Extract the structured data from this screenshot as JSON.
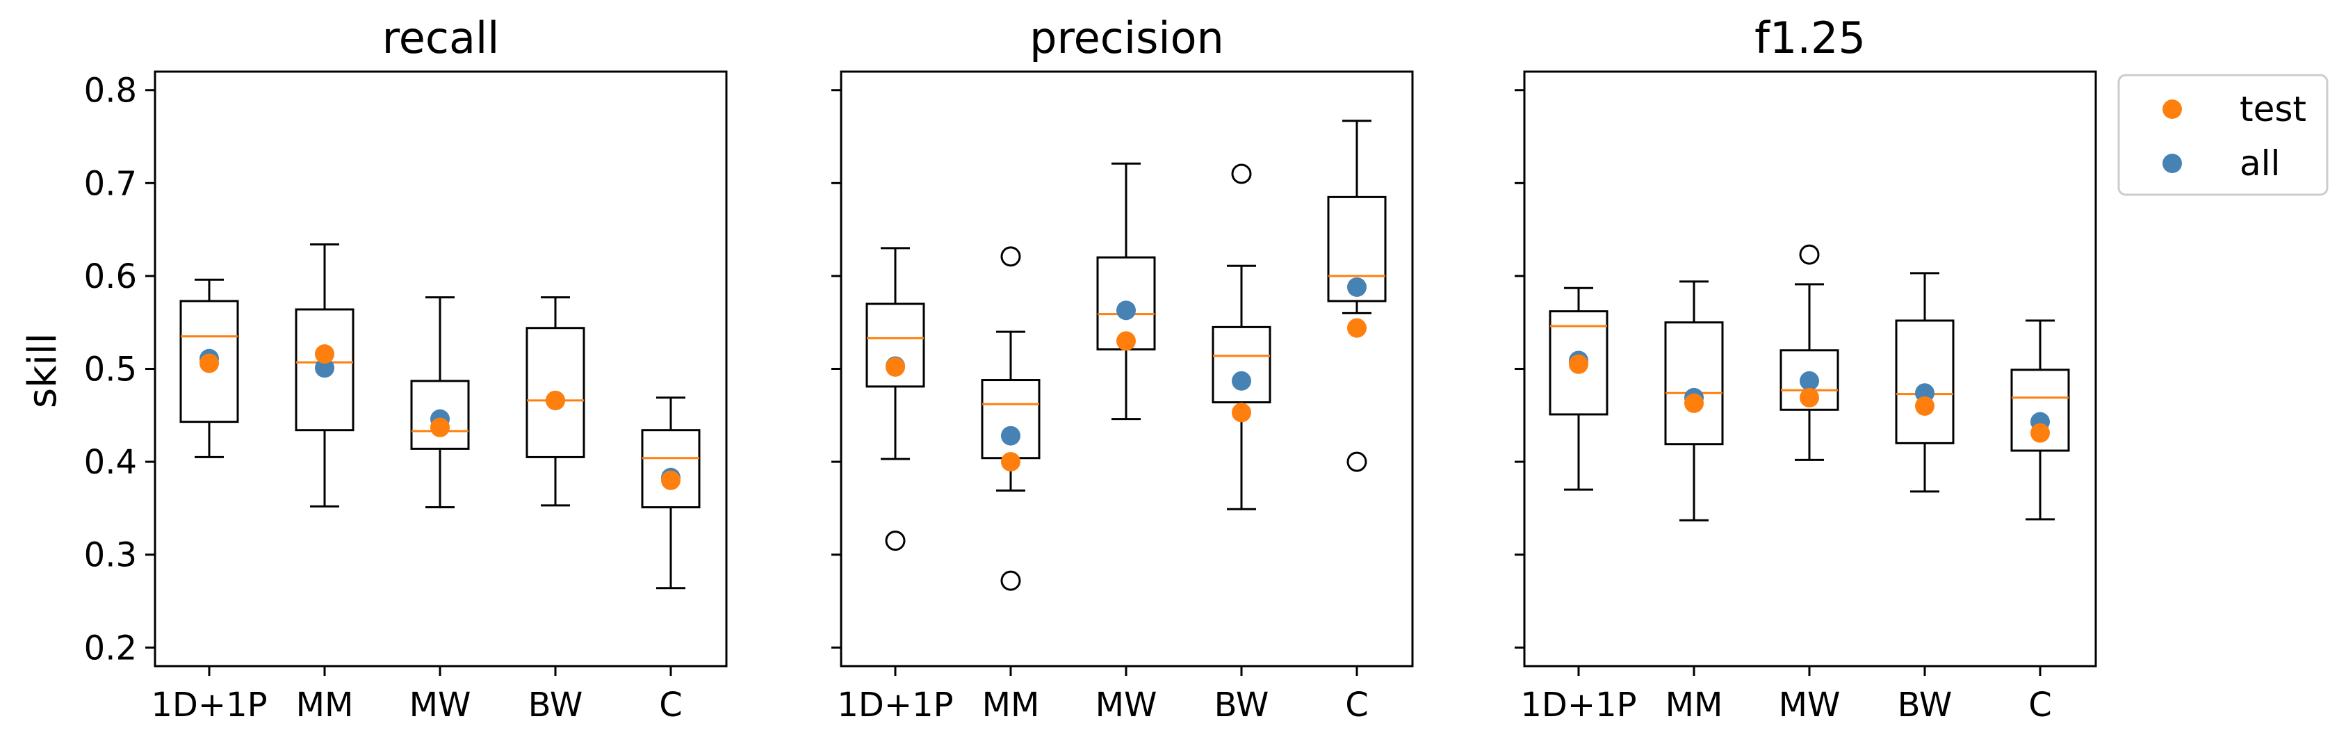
{
  "chart_data": {
    "type": "box",
    "ylabel": "skill",
    "ylim": [
      0.18,
      0.82
    ],
    "yticks": [
      "0.2",
      "0.3",
      "0.4",
      "0.5",
      "0.6",
      "0.7",
      "0.8"
    ],
    "categories": [
      "1D+1P",
      "MM",
      "MW",
      "BW",
      "C"
    ],
    "colors": {
      "median": "#ff7f0e",
      "test": "#ff7f0e",
      "all": "#4682b4",
      "box": "#000000"
    },
    "legend": {
      "position": "outside-top-right",
      "items": [
        {
          "label": "test",
          "color": "#ff7f0e"
        },
        {
          "label": "all",
          "color": "#4682b4"
        }
      ]
    },
    "panels": [
      {
        "title": "recall",
        "boxes": [
          {
            "category": "1D+1P",
            "whislo": 0.405,
            "q1": 0.443,
            "median": 0.535,
            "q3": 0.573,
            "whishi": 0.596,
            "fliers": []
          },
          {
            "category": "MM",
            "whislo": 0.352,
            "q1": 0.434,
            "median": 0.507,
            "q3": 0.564,
            "whishi": 0.634,
            "fliers": []
          },
          {
            "category": "MW",
            "whislo": 0.351,
            "q1": 0.414,
            "median": 0.433,
            "q3": 0.487,
            "whishi": 0.577,
            "fliers": []
          },
          {
            "category": "BW",
            "whislo": 0.353,
            "q1": 0.405,
            "median": 0.466,
            "q3": 0.544,
            "whishi": 0.577,
            "fliers": []
          },
          {
            "category": "C",
            "whislo": 0.264,
            "q1": 0.351,
            "median": 0.404,
            "q3": 0.434,
            "whishi": 0.469,
            "fliers": []
          }
        ],
        "all": [
          0.511,
          0.501,
          0.446,
          0.466,
          0.383
        ],
        "test": [
          0.506,
          0.516,
          0.437,
          0.466,
          0.38
        ]
      },
      {
        "title": "precision",
        "boxes": [
          {
            "category": "1D+1P",
            "whislo": 0.403,
            "q1": 0.481,
            "median": 0.533,
            "q3": 0.57,
            "whishi": 0.63,
            "fliers": [
              0.315
            ]
          },
          {
            "category": "MM",
            "whislo": 0.369,
            "q1": 0.404,
            "median": 0.462,
            "q3": 0.488,
            "whishi": 0.54,
            "fliers": [
              0.621,
              0.272
            ]
          },
          {
            "category": "MW",
            "whislo": 0.446,
            "q1": 0.521,
            "median": 0.559,
            "q3": 0.62,
            "whishi": 0.721,
            "fliers": []
          },
          {
            "category": "BW",
            "whislo": 0.349,
            "q1": 0.464,
            "median": 0.514,
            "q3": 0.545,
            "whishi": 0.611,
            "fliers": [
              0.71
            ]
          },
          {
            "category": "C",
            "whislo": 0.56,
            "q1": 0.573,
            "median": 0.6,
            "q3": 0.685,
            "whishi": 0.767,
            "fliers": [
              0.4
            ]
          }
        ],
        "all": [
          0.503,
          0.428,
          0.563,
          0.487,
          0.588
        ],
        "test": [
          0.502,
          0.4,
          0.53,
          0.453,
          0.544
        ]
      },
      {
        "title": "f1.25",
        "boxes": [
          {
            "category": "1D+1P",
            "whislo": 0.37,
            "q1": 0.451,
            "median": 0.546,
            "q3": 0.562,
            "whishi": 0.587,
            "fliers": []
          },
          {
            "category": "MM",
            "whislo": 0.337,
            "q1": 0.419,
            "median": 0.474,
            "q3": 0.55,
            "whishi": 0.594,
            "fliers": []
          },
          {
            "category": "MW",
            "whislo": 0.402,
            "q1": 0.456,
            "median": 0.477,
            "q3": 0.52,
            "whishi": 0.591,
            "fliers": [
              0.623
            ]
          },
          {
            "category": "BW",
            "whislo": 0.368,
            "q1": 0.42,
            "median": 0.473,
            "q3": 0.552,
            "whishi": 0.603,
            "fliers": []
          },
          {
            "category": "C",
            "whislo": 0.338,
            "q1": 0.412,
            "median": 0.469,
            "q3": 0.499,
            "whishi": 0.552,
            "fliers": []
          }
        ],
        "all": [
          0.509,
          0.469,
          0.487,
          0.474,
          0.443
        ],
        "test": [
          0.505,
          0.463,
          0.469,
          0.46,
          0.431
        ]
      }
    ]
  }
}
